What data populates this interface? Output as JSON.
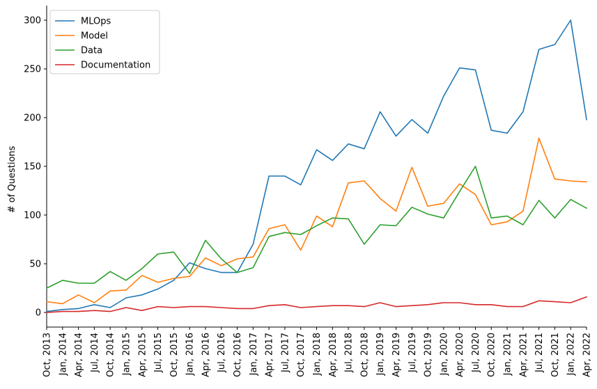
{
  "chart_data": {
    "type": "line",
    "ylabel": "# of Questions",
    "xlabel": "",
    "ylim": [
      -15,
      315
    ],
    "yticks": [
      0,
      50,
      100,
      150,
      200,
      250,
      300
    ],
    "grid": false,
    "legend_position": "top-left",
    "x": [
      "Oct, 2013",
      "Jan, 2014",
      "Apr, 2014",
      "Jul, 2014",
      "Oct, 2014",
      "Jan, 2015",
      "Apr, 2015",
      "Jul, 2015",
      "Oct, 2015",
      "Jan, 2016",
      "Apr, 2016",
      "Jul, 2016",
      "Oct, 2016",
      "Jan, 2017",
      "Apr, 2017",
      "Jul, 2017",
      "Oct, 2017",
      "Jan, 2018",
      "Apr, 2018",
      "Jul, 2018",
      "Oct, 2018",
      "Jan, 2019",
      "Apr, 2019",
      "Jul, 2019",
      "Oct, 2019",
      "Jan, 2020",
      "Apr, 2020",
      "Jul, 2020",
      "Oct, 2020",
      "Jan, 2021",
      "Apr, 2021",
      "Jul, 2021",
      "Oct, 2021",
      "Jan, 2022",
      "Apr, 2022"
    ],
    "series": [
      {
        "name": "MLOps",
        "color": "#1f77b4",
        "values": [
          1,
          3,
          4,
          8,
          5,
          15,
          18,
          24,
          33,
          51,
          45,
          41,
          41,
          70,
          140,
          140,
          131,
          167,
          156,
          173,
          168,
          206,
          181,
          198,
          184,
          222,
          251,
          249,
          187,
          184,
          206,
          270,
          275,
          300,
          198
        ]
      },
      {
        "name": "Model",
        "color": "#ff7f0e",
        "values": [
          11,
          9,
          18,
          10,
          22,
          23,
          38,
          31,
          35,
          37,
          56,
          48,
          55,
          57,
          86,
          90,
          64,
          99,
          88,
          133,
          135,
          117,
          104,
          149,
          109,
          112,
          132,
          121,
          90,
          93,
          104,
          179,
          137,
          135,
          134
        ]
      },
      {
        "name": "Data",
        "color": "#2ca02c",
        "values": [
          25,
          33,
          30,
          30,
          42,
          33,
          45,
          60,
          62,
          40,
          74,
          55,
          41,
          46,
          78,
          82,
          80,
          89,
          97,
          96,
          70,
          90,
          89,
          108,
          101,
          97,
          124,
          150,
          97,
          99,
          90,
          115,
          97,
          116,
          107
        ]
      },
      {
        "name": "Documentation",
        "color": "#d62728",
        "values": [
          0,
          1,
          1,
          2,
          1,
          5,
          2,
          6,
          5,
          6,
          6,
          5,
          4,
          4,
          7,
          8,
          5,
          6,
          7,
          7,
          6,
          10,
          6,
          7,
          8,
          10,
          10,
          8,
          8,
          6,
          6,
          12,
          11,
          10,
          16
        ]
      }
    ]
  }
}
